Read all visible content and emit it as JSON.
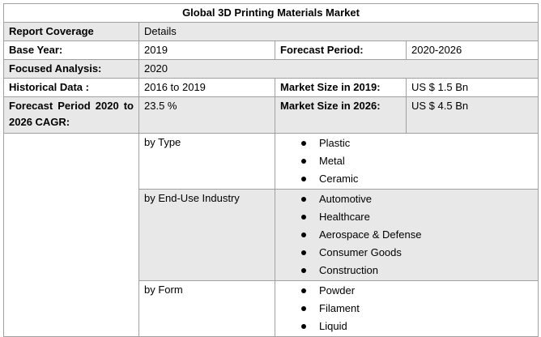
{
  "title": "Global 3D Printing Materials Market",
  "rows": {
    "coverage": {
      "label": "Report Coverage",
      "value": "Details"
    },
    "base_year": {
      "label": "Base Year:",
      "value": "2019",
      "label2": "Forecast Period:",
      "value2": "2020-2026"
    },
    "focused": {
      "label": "Focused Analysis:",
      "value": "2020"
    },
    "historical": {
      "label": "Historical Data :",
      "value": "2016 to 2019",
      "label2": "Market Size in 2019:",
      "value2": "US $ 1.5 Bn"
    },
    "cagr": {
      "label": "Forecast Period 2020 to 2026 CAGR:",
      "value": "23.5 %",
      "label2": "Market Size in 2026:",
      "value2": "US $ 4.5 Bn"
    }
  },
  "segments": [
    {
      "label": "by Type",
      "items": [
        "Plastic",
        "Metal",
        "Ceramic"
      ]
    },
    {
      "label": "by End-Use Industry",
      "items": [
        "Automotive",
        "Healthcare",
        "Aerospace & Defense",
        "Consumer Goods",
        "Construction"
      ]
    },
    {
      "label": "by Form",
      "items": [
        "Powder",
        "Filament",
        "Liquid"
      ]
    }
  ]
}
